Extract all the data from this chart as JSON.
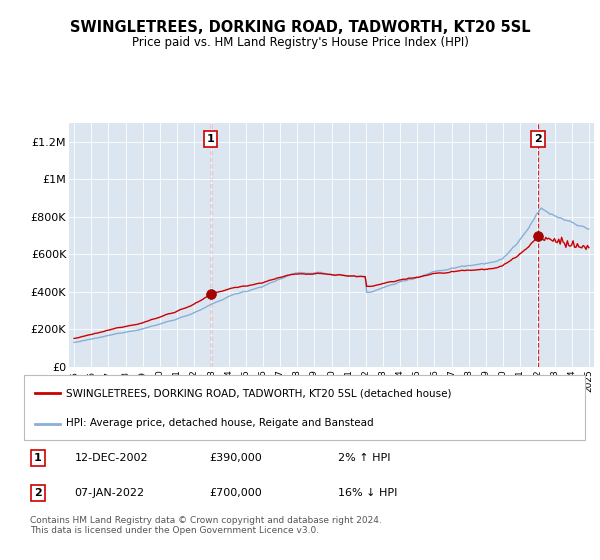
{
  "title": "SWINGLETREES, DORKING ROAD, TADWORTH, KT20 5SL",
  "subtitle": "Price paid vs. HM Land Registry's House Price Index (HPI)",
  "ylabel_ticks": [
    "£0",
    "£200K",
    "£400K",
    "£600K",
    "£800K",
    "£1M",
    "£1.2M"
  ],
  "ylim": [
    0,
    1300000
  ],
  "yticks": [
    0,
    200000,
    400000,
    600000,
    800000,
    1000000,
    1200000
  ],
  "background_color": "#dce6f1",
  "line1_color": "#cc0000",
  "line2_color": "#89afd4",
  "vline_color": "#dd0000",
  "marker1_x": 2002.95,
  "marker1_y": 390000,
  "marker2_x": 2022.03,
  "marker2_y": 700000,
  "annotation1": {
    "date": "12-DEC-2002",
    "price": "£390,000",
    "hpi": "2% ↑ HPI"
  },
  "annotation2": {
    "date": "07-JAN-2022",
    "price": "£700,000",
    "hpi": "16% ↓ HPI"
  },
  "legend1": "SWINGLETREES, DORKING ROAD, TADWORTH, KT20 5SL (detached house)",
  "legend2": "HPI: Average price, detached house, Reigate and Banstead",
  "footer": "Contains HM Land Registry data © Crown copyright and database right 2024.\nThis data is licensed under the Open Government Licence v3.0.",
  "xmin": 1994.7,
  "xmax": 2025.3
}
